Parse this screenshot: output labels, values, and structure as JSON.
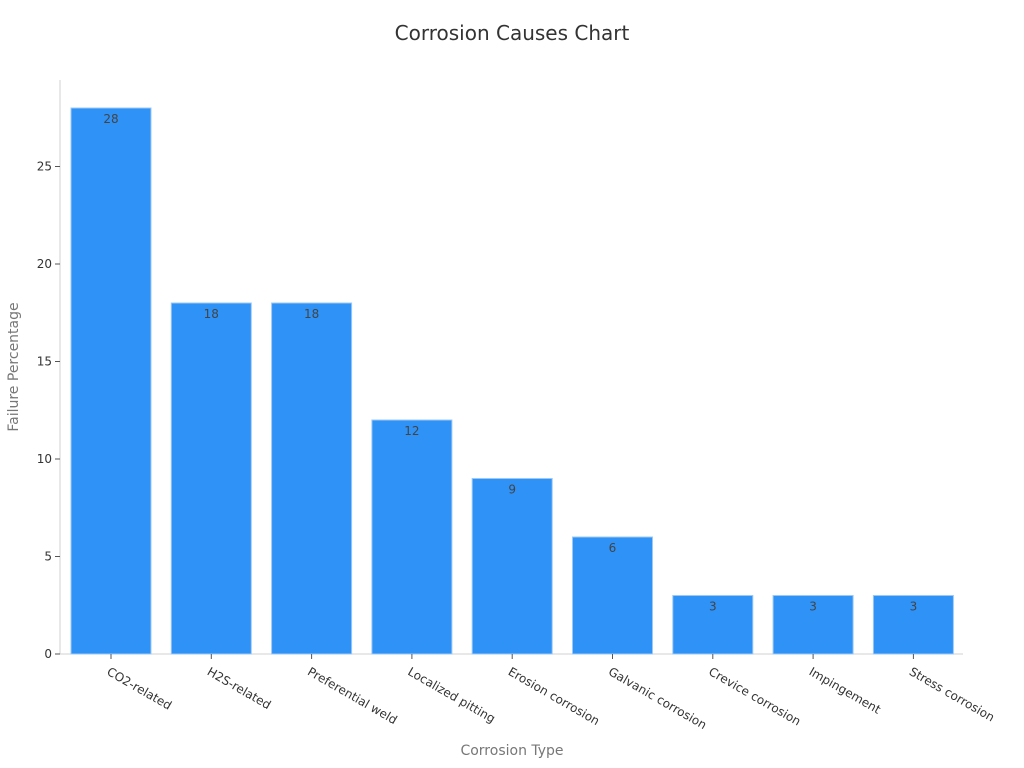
{
  "chart_data": {
    "type": "bar",
    "title": "Corrosion Causes Chart",
    "xlabel": "Corrosion Type",
    "ylabel": "Failure Percentage",
    "categories": [
      "CO2-related",
      "H2S-related",
      "Preferential weld",
      "Localized pitting",
      "Erosion corrosion",
      "Galvanic corrosion",
      "Crevice corrosion",
      "Impingement",
      "Stress corrosion"
    ],
    "values": [
      28,
      18,
      18,
      12,
      9,
      6,
      3,
      3,
      3
    ],
    "ylim": [
      0,
      29.4
    ],
    "yticks": [
      0,
      5,
      10,
      15,
      20,
      25
    ],
    "grid": false,
    "legend": null,
    "bar_color": "#2f92f7",
    "data_labels": true
  }
}
